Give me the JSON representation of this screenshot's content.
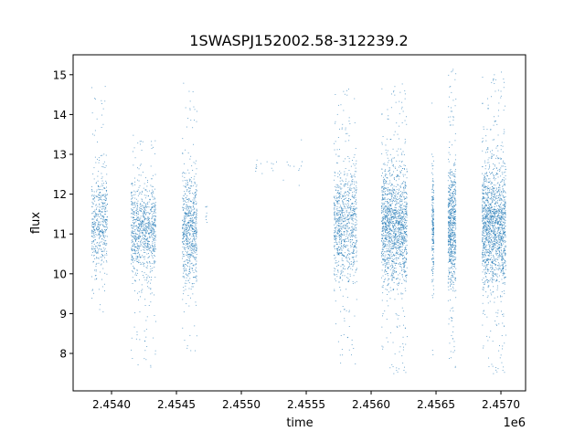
{
  "chart_data": {
    "type": "scatter",
    "title": "1SWASPJ152002.58-312239.2",
    "xlabel": "time",
    "ylabel": "flux",
    "x_offset_label": "1e6",
    "xlim": [
      2453704,
      2457190
    ],
    "ylim": [
      7.06,
      15.5
    ],
    "x_ticks": [
      2454000,
      2454500,
      2455000,
      2455500,
      2456000,
      2456500,
      2457000
    ],
    "x_tick_labels": [
      "2.4540",
      "2.4545",
      "2.4550",
      "2.4555",
      "2.4560",
      "2.4565",
      "2.4570"
    ],
    "y_ticks": [
      8,
      9,
      10,
      11,
      12,
      13,
      14,
      15
    ],
    "y_tick_labels": [
      "8",
      "9",
      "10",
      "11",
      "12",
      "13",
      "14",
      "15"
    ],
    "grid": false,
    "marker_color": "#1f77b4",
    "seasons": [
      {
        "t_start": 2453845,
        "t_end": 2453965,
        "flux_median": 11.3,
        "flux_min": 8.9,
        "flux_max": 14.8,
        "density": 500
      },
      {
        "t_start": 2454148,
        "t_end": 2454338,
        "flux_median": 11.1,
        "flux_min": 7.6,
        "flux_max": 13.5,
        "density": 900
      },
      {
        "t_start": 2454542,
        "t_end": 2454655,
        "flux_median": 11.1,
        "flux_min": 8.0,
        "flux_max": 14.8,
        "density": 700
      },
      {
        "t_start": 2454715,
        "t_end": 2454735,
        "flux_median": 11.5,
        "flux_min": 11.3,
        "flux_max": 11.7,
        "density": 8
      },
      {
        "t_start": 2455100,
        "t_end": 2455465,
        "flux_median": 12.7,
        "flux_min": 12.2,
        "flux_max": 13.4,
        "density": 25
      },
      {
        "t_start": 2455711,
        "t_end": 2455887,
        "flux_median": 11.3,
        "flux_min": 7.6,
        "flux_max": 14.7,
        "density": 900
      },
      {
        "t_start": 2456077,
        "t_end": 2456275,
        "flux_median": 11.2,
        "flux_min": 7.5,
        "flux_max": 14.8,
        "density": 1500
      },
      {
        "t_start": 2456465,
        "t_end": 2456480,
        "flux_median": 11.2,
        "flux_min": 7.9,
        "flux_max": 14.3,
        "density": 200
      },
      {
        "t_start": 2456590,
        "t_end": 2456650,
        "flux_median": 11.2,
        "flux_min": 7.5,
        "flux_max": 15.2,
        "density": 700
      },
      {
        "t_start": 2456852,
        "t_end": 2457035,
        "flux_median": 11.2,
        "flux_min": 7.5,
        "flux_max": 15.1,
        "density": 1600
      }
    ]
  }
}
